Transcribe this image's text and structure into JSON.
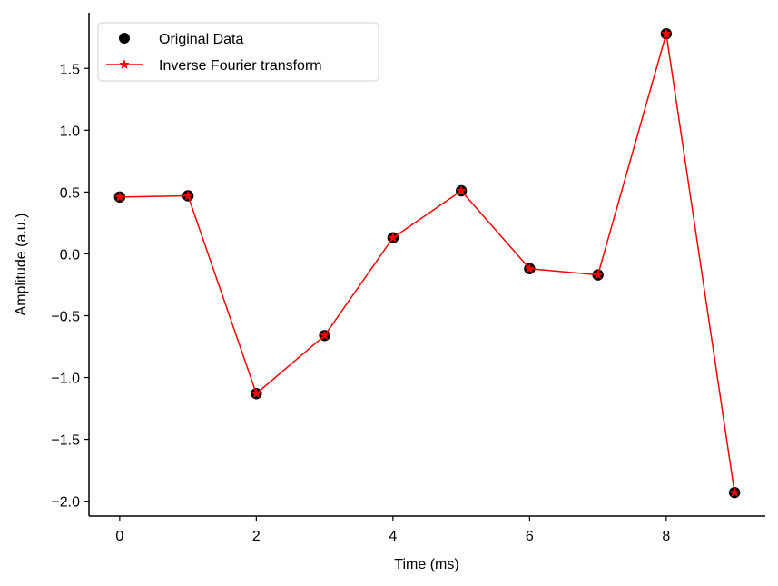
{
  "chart_data": {
    "type": "line",
    "xlabel": "Time (ms)",
    "ylabel": "Amplitude (a.u.)",
    "xlim": [
      -0.45,
      9.45
    ],
    "ylim": [
      -2.12,
      1.95
    ],
    "xticks": [
      0,
      2,
      4,
      6,
      8
    ],
    "xtick_labels": [
      "0",
      "2",
      "4",
      "6",
      "8"
    ],
    "yticks": [
      -2.0,
      -1.5,
      -1.0,
      -0.5,
      0.0,
      0.5,
      1.0,
      1.5
    ],
    "ytick_labels": [
      "−2.0",
      "−1.5",
      "−1.0",
      "−0.5",
      "0.0",
      "0.5",
      "1.0",
      "1.5"
    ],
    "grid": false,
    "legend_position": "top-left",
    "x": [
      0,
      1,
      2,
      3,
      4,
      5,
      6,
      7,
      8,
      9
    ],
    "series": [
      {
        "name": "Original Data",
        "style": "markers",
        "marker": "circle",
        "color": "#000000",
        "values": [
          0.46,
          0.47,
          -1.13,
          -0.66,
          0.13,
          0.51,
          -0.12,
          -0.17,
          1.78,
          -1.93
        ]
      },
      {
        "name": "Inverse Fourier transform",
        "style": "line-markers",
        "marker": "star",
        "color": "#ff0000",
        "values": [
          0.46,
          0.47,
          -1.13,
          -0.66,
          0.13,
          0.51,
          -0.12,
          -0.17,
          1.78,
          -1.93
        ]
      }
    ]
  }
}
